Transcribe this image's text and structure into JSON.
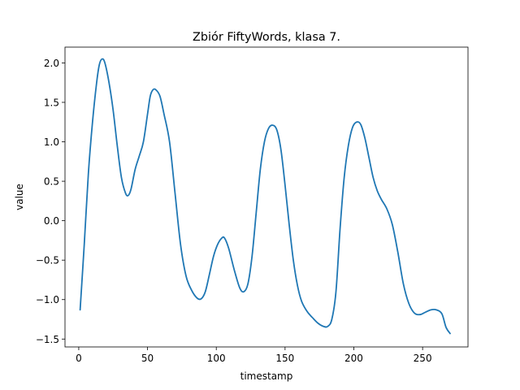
{
  "chart_data": {
    "type": "line",
    "title": "Zbiór FiftyWords, klasa 7.",
    "xlabel": "timestamp",
    "ylabel": "value",
    "xlim": [
      -10,
      283
    ],
    "ylim": [
      -1.6,
      2.2
    ],
    "xticks": [
      0,
      50,
      100,
      150,
      200,
      250
    ],
    "yticks": [
      -1.5,
      -1.0,
      -0.5,
      0.0,
      0.5,
      1.0,
      1.5,
      2.0
    ],
    "xtick_labels": [
      "0",
      "50",
      "100",
      "150",
      "200",
      "250"
    ],
    "ytick_labels": [
      "−1.5",
      "−1.0",
      "−0.5",
      "0.0",
      "0.5",
      "1.0",
      "1.5",
      "2.0"
    ],
    "grid": false,
    "series": [
      {
        "color": "#1f77b4",
        "points": [
          [
            1,
            -1.13
          ],
          [
            4,
            -0.3
          ],
          [
            7,
            0.6
          ],
          [
            10,
            1.25
          ],
          [
            13,
            1.75
          ],
          [
            15,
            1.98
          ],
          [
            17,
            2.05
          ],
          [
            19,
            2.0
          ],
          [
            22,
            1.75
          ],
          [
            25,
            1.4
          ],
          [
            28,
            0.95
          ],
          [
            31,
            0.55
          ],
          [
            34,
            0.35
          ],
          [
            36,
            0.32
          ],
          [
            38,
            0.4
          ],
          [
            41,
            0.65
          ],
          [
            44,
            0.82
          ],
          [
            47,
            1.0
          ],
          [
            50,
            1.35
          ],
          [
            52,
            1.58
          ],
          [
            54,
            1.66
          ],
          [
            56,
            1.66
          ],
          [
            59,
            1.58
          ],
          [
            62,
            1.35
          ],
          [
            66,
            1.0
          ],
          [
            70,
            0.35
          ],
          [
            74,
            -0.3
          ],
          [
            78,
            -0.7
          ],
          [
            82,
            -0.88
          ],
          [
            86,
            -0.98
          ],
          [
            89,
            -0.99
          ],
          [
            92,
            -0.9
          ],
          [
            95,
            -0.68
          ],
          [
            98,
            -0.45
          ],
          [
            101,
            -0.3
          ],
          [
            104,
            -0.22
          ],
          [
            106,
            -0.22
          ],
          [
            109,
            -0.35
          ],
          [
            113,
            -0.62
          ],
          [
            117,
            -0.85
          ],
          [
            120,
            -0.9
          ],
          [
            123,
            -0.8
          ],
          [
            126,
            -0.45
          ],
          [
            129,
            0.1
          ],
          [
            132,
            0.65
          ],
          [
            135,
            1.0
          ],
          [
            138,
            1.17
          ],
          [
            141,
            1.21
          ],
          [
            144,
            1.15
          ],
          [
            147,
            0.9
          ],
          [
            150,
            0.45
          ],
          [
            153,
            -0.05
          ],
          [
            156,
            -0.5
          ],
          [
            159,
            -0.82
          ],
          [
            162,
            -1.02
          ],
          [
            166,
            -1.15
          ],
          [
            170,
            -1.23
          ],
          [
            174,
            -1.3
          ],
          [
            178,
            -1.34
          ],
          [
            181,
            -1.34
          ],
          [
            184,
            -1.25
          ],
          [
            187,
            -0.9
          ],
          [
            190,
            -0.1
          ],
          [
            193,
            0.55
          ],
          [
            196,
            0.95
          ],
          [
            199,
            1.18
          ],
          [
            202,
            1.25
          ],
          [
            205,
            1.22
          ],
          [
            208,
            1.05
          ],
          [
            211,
            0.8
          ],
          [
            214,
            0.55
          ],
          [
            217,
            0.38
          ],
          [
            220,
            0.27
          ],
          [
            224,
            0.15
          ],
          [
            228,
            -0.05
          ],
          [
            232,
            -0.4
          ],
          [
            236,
            -0.8
          ],
          [
            240,
            -1.05
          ],
          [
            244,
            -1.17
          ],
          [
            248,
            -1.19
          ],
          [
            252,
            -1.16
          ],
          [
            256,
            -1.13
          ],
          [
            260,
            -1.13
          ],
          [
            264,
            -1.18
          ],
          [
            267,
            -1.35
          ],
          [
            270,
            -1.43
          ]
        ]
      }
    ]
  }
}
